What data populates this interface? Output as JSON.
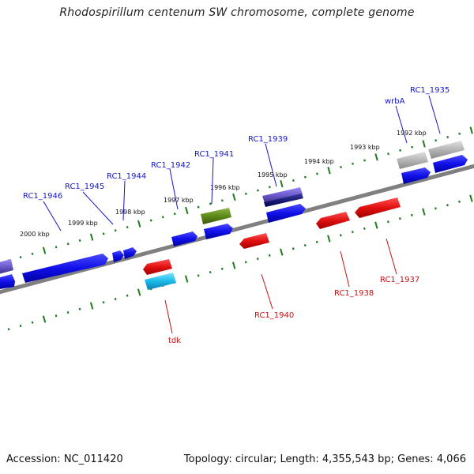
{
  "title": "Rhodospirillum centenum SW chromosome, complete genome",
  "footer": {
    "accession": "Accession: NC_011420",
    "topology": "Topology: circular; Length: 4,355,543 bp; Genes: 4,066"
  },
  "colors": {
    "forward_gene": "#1010e8",
    "reverse_gene": "#e01010",
    "rna_gene": "#1ab8e8",
    "green_gene": "#5e8a1a",
    "grey_gene": "#b5b5b5",
    "purple_gene": "#6a5acd",
    "backbone": "#808080",
    "scale_ticks": "#1e7a1e",
    "forward_label": "#1515c8",
    "reverse_label": "#c81010"
  },
  "scale_labels": [
    "2000 kbp",
    "1999 kbp",
    "1998 kbp",
    "1997 kbp",
    "1996 kbp",
    "1995 kbp",
    "1994 kbp",
    "1993 kbp",
    "1992 kbp"
  ],
  "forward_genes": [
    "RC1_1946",
    "RC1_1945",
    "RC1_1944",
    "RC1_1942",
    "RC1_1941",
    "RC1_1939",
    "wrbA",
    "RC1_1935"
  ],
  "reverse_genes": [
    "tdk",
    "RC1_1940",
    "RC1_1938",
    "RC1_1937"
  ]
}
